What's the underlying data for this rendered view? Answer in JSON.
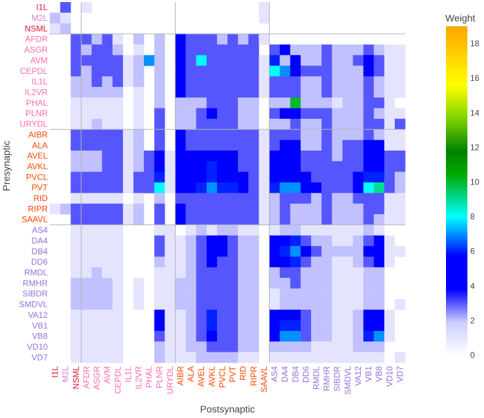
{
  "chart_data": {
    "type": "heatmap",
    "title": "",
    "xlabel": "Postsynaptic",
    "ylabel": "Presynaptic",
    "colorbar": {
      "title": "Weight",
      "range": [
        0,
        19
      ],
      "ticks": [
        0,
        2,
        4,
        6,
        8,
        10,
        12,
        14,
        16,
        18
      ],
      "colorscale": [
        [
          0,
          "#ffffff"
        ],
        [
          0.1,
          "#ccccff"
        ],
        [
          0.2,
          "#0000ff"
        ],
        [
          0.3,
          "#0000ff"
        ],
        [
          0.42,
          "#00ffff"
        ],
        [
          0.55,
          "#00aa00"
        ],
        [
          0.62,
          "#008000"
        ],
        [
          0.72,
          "#7fd400"
        ],
        [
          0.82,
          "#ffff00"
        ],
        [
          1.0,
          "#ffa500"
        ]
      ]
    },
    "y_labels": [
      {
        "text": "I1L",
        "color": "#dc143c"
      },
      {
        "text": "M2L",
        "color": "#d580d5"
      },
      {
        "text": "NSML",
        "color": "#dc143c"
      },
      {
        "text": "AFDR",
        "color": "#ff69b4"
      },
      {
        "text": "ASGR",
        "color": "#ff69b4"
      },
      {
        "text": "AVM",
        "color": "#ff69b4"
      },
      {
        "text": "CEPDL",
        "color": "#ff69b4"
      },
      {
        "text": "IL1L",
        "color": "#ff69b4"
      },
      {
        "text": "IL2VR",
        "color": "#ff69b4"
      },
      {
        "text": "PHAL",
        "color": "#ff69b4"
      },
      {
        "text": "PLNR",
        "color": "#ff69b4"
      },
      {
        "text": "URYDL",
        "color": "#ff69b4"
      },
      {
        "text": "AIBR",
        "color": "#ff4500"
      },
      {
        "text": "ALA",
        "color": "#ff4500"
      },
      {
        "text": "AVEL",
        "color": "#ff4500"
      },
      {
        "text": "AVKL",
        "color": "#ff4500"
      },
      {
        "text": "PVCL",
        "color": "#ff4500"
      },
      {
        "text": "PVT",
        "color": "#ff4500"
      },
      {
        "text": "RID",
        "color": "#ff4500"
      },
      {
        "text": "RIPR",
        "color": "#ff4500"
      },
      {
        "text": "SAAVL",
        "color": "#ff4500"
      },
      {
        "text": "AS4",
        "color": "#9370db"
      },
      {
        "text": "DA4",
        "color": "#9370db"
      },
      {
        "text": "DB4",
        "color": "#9370db"
      },
      {
        "text": "DD6",
        "color": "#9370db"
      },
      {
        "text": "RMDL",
        "color": "#9370db"
      },
      {
        "text": "RMHR",
        "color": "#9370db"
      },
      {
        "text": "SIBDR",
        "color": "#9370db"
      },
      {
        "text": "SMDVL",
        "color": "#9370db"
      },
      {
        "text": "VA12",
        "color": "#9370db"
      },
      {
        "text": "VB1",
        "color": "#9370db"
      },
      {
        "text": "VB8",
        "color": "#9370db"
      },
      {
        "text": "VD10",
        "color": "#9370db"
      },
      {
        "text": "VD7",
        "color": "#9370db"
      }
    ],
    "x_labels": [
      {
        "text": "I1L",
        "color": "#dc143c"
      },
      {
        "text": "M2L",
        "color": "#d580d5"
      },
      {
        "text": "NSML",
        "color": "#dc143c"
      },
      {
        "text": "AFDR",
        "color": "#ff69b4"
      },
      {
        "text": "ASGR",
        "color": "#ff69b4"
      },
      {
        "text": "AVM",
        "color": "#ff69b4"
      },
      {
        "text": "CEPDL",
        "color": "#ff69b4"
      },
      {
        "text": "IL1L",
        "color": "#ff69b4"
      },
      {
        "text": "IL2VR",
        "color": "#ff69b4"
      },
      {
        "text": "PHAL",
        "color": "#ff69b4"
      },
      {
        "text": "PLNR",
        "color": "#ff69b4"
      },
      {
        "text": "URYDL",
        "color": "#ff69b4"
      },
      {
        "text": "AIBR",
        "color": "#ff4500"
      },
      {
        "text": "ALA",
        "color": "#ff4500"
      },
      {
        "text": "AVEL",
        "color": "#ff4500"
      },
      {
        "text": "AVKL",
        "color": "#ff4500"
      },
      {
        "text": "PVCL",
        "color": "#ff4500"
      },
      {
        "text": "PVT",
        "color": "#ff4500"
      },
      {
        "text": "RID",
        "color": "#ff4500"
      },
      {
        "text": "RIPR",
        "color": "#ff4500"
      },
      {
        "text": "SAAVL",
        "color": "#ff4500"
      },
      {
        "text": "AS4",
        "color": "#9370db"
      },
      {
        "text": "DA4",
        "color": "#9370db"
      },
      {
        "text": "DB4",
        "color": "#9370db"
      },
      {
        "text": "DD6",
        "color": "#9370db"
      },
      {
        "text": "RMDL",
        "color": "#9370db"
      },
      {
        "text": "RMHR",
        "color": "#9370db"
      },
      {
        "text": "SIBDR",
        "color": "#9370db"
      },
      {
        "text": "SMDVL",
        "color": "#9370db"
      },
      {
        "text": "VA12",
        "color": "#9370db"
      },
      {
        "text": "VB1",
        "color": "#9370db"
      },
      {
        "text": "VB8",
        "color": "#9370db"
      },
      {
        "text": "VD10",
        "color": "#9370db"
      },
      {
        "text": "VD7",
        "color": "#9370db"
      }
    ],
    "group_boundaries_after": [
      "NSML",
      "URYDL",
      "SAAVL"
    ],
    "values": [
      [
        0,
        3,
        0,
        1,
        0,
        0,
        0,
        0,
        0,
        0,
        0,
        0,
        0,
        0,
        0,
        0,
        0,
        0,
        0,
        0,
        1,
        0,
        0,
        0,
        0,
        0,
        0,
        0,
        0,
        0,
        0,
        0,
        0,
        0
      ],
      [
        2,
        1,
        0,
        0,
        0,
        0,
        0,
        0,
        0,
        0,
        0,
        0,
        0,
        0,
        0,
        0,
        0,
        0,
        0,
        0,
        1,
        0,
        0,
        0,
        0,
        0,
        0,
        0,
        0,
        0,
        0,
        0,
        0,
        0
      ],
      [
        1,
        2,
        0,
        0,
        0,
        0,
        0,
        0,
        0,
        0,
        0,
        0,
        0,
        0,
        0,
        0,
        0,
        0,
        0,
        0,
        0,
        0,
        0,
        0,
        0,
        0,
        0,
        0,
        0,
        0,
        0,
        0,
        0,
        0
      ],
      [
        0,
        0,
        3,
        3,
        2,
        3,
        1,
        0,
        2,
        0,
        2,
        0,
        4,
        3,
        3,
        3,
        2,
        3,
        2,
        3,
        1,
        0,
        0,
        0,
        0,
        0,
        0,
        0,
        0,
        0,
        0,
        0,
        0,
        0
      ],
      [
        0,
        0,
        3,
        2,
        3,
        3,
        2,
        0,
        1,
        0,
        2,
        0,
        4,
        3,
        3,
        3,
        3,
        3,
        3,
        3,
        0,
        3,
        4,
        2,
        2,
        2,
        3,
        2,
        2,
        2,
        3,
        2,
        1,
        1
      ],
      [
        0,
        0,
        3,
        3,
        3,
        3,
        3,
        1,
        2,
        7,
        2,
        0,
        4,
        3,
        8,
        3,
        3,
        3,
        3,
        3,
        1,
        6,
        2,
        4,
        2,
        2,
        3,
        2,
        2,
        3,
        4,
        3,
        1,
        1
      ],
      [
        0,
        0,
        3,
        2,
        3,
        3,
        3,
        1,
        2,
        0,
        2,
        0,
        4,
        3,
        3,
        3,
        3,
        3,
        3,
        3,
        1,
        8,
        7,
        4,
        3,
        3,
        3,
        2,
        2,
        2,
        4,
        3,
        1,
        1
      ],
      [
        0,
        0,
        2,
        2,
        3,
        2,
        3,
        1,
        2,
        0,
        2,
        0,
        4,
        3,
        3,
        3,
        3,
        3,
        3,
        3,
        1,
        3,
        3,
        3,
        2,
        2,
        3,
        2,
        2,
        2,
        3,
        2,
        1,
        1
      ],
      [
        0,
        0,
        2,
        2,
        2,
        2,
        2,
        0,
        1,
        0,
        2,
        0,
        4,
        3,
        3,
        3,
        3,
        3,
        3,
        3,
        1,
        3,
        3,
        3,
        2,
        2,
        3,
        2,
        2,
        2,
        3,
        2,
        1,
        1
      ],
      [
        0,
        0,
        1,
        1,
        1,
        1,
        1,
        0,
        1,
        0,
        2,
        0,
        2,
        2,
        2,
        3,
        3,
        3,
        2,
        2,
        0,
        2,
        2,
        10,
        2,
        2,
        2,
        1,
        2,
        2,
        3,
        3,
        1,
        0
      ],
      [
        0,
        0,
        1,
        1,
        1,
        1,
        1,
        0,
        1,
        0,
        3,
        0,
        2,
        2,
        3,
        4,
        3,
        3,
        2,
        2,
        0,
        3,
        4,
        4,
        3,
        3,
        3,
        2,
        2,
        2,
        3,
        2,
        1,
        1
      ],
      [
        0,
        0,
        1,
        1,
        2,
        1,
        1,
        0,
        1,
        0,
        3,
        0,
        2,
        2,
        3,
        3,
        3,
        3,
        2,
        2,
        0,
        2,
        2,
        3,
        2,
        2,
        3,
        2,
        2,
        2,
        3,
        3,
        1,
        3
      ],
      [
        0,
        0,
        3,
        3,
        3,
        3,
        3,
        1,
        2,
        0,
        3,
        0,
        4,
        3,
        3,
        3,
        3,
        3,
        3,
        3,
        1,
        3,
        3,
        3,
        2,
        2,
        3,
        2,
        2,
        2,
        3,
        2,
        1,
        1
      ],
      [
        0,
        0,
        3,
        3,
        3,
        3,
        3,
        1,
        2,
        0,
        3,
        0,
        4,
        3,
        3,
        3,
        3,
        3,
        3,
        3,
        1,
        3,
        4,
        4,
        2,
        2,
        3,
        2,
        3,
        3,
        4,
        4,
        1,
        1
      ],
      [
        0,
        0,
        2,
        2,
        2,
        3,
        3,
        1,
        2,
        3,
        4,
        1,
        4,
        4,
        4,
        4,
        4,
        4,
        3,
        3,
        1,
        4,
        4,
        4,
        3,
        3,
        3,
        2,
        3,
        3,
        4,
        4,
        3,
        3
      ],
      [
        0,
        0,
        2,
        2,
        2,
        3,
        3,
        1,
        2,
        3,
        5,
        1,
        4,
        4,
        5,
        6,
        4,
        4,
        3,
        3,
        1,
        4,
        4,
        4,
        3,
        3,
        3,
        3,
        3,
        3,
        5,
        4,
        3,
        3
      ],
      [
        0,
        0,
        3,
        3,
        3,
        3,
        3,
        1,
        3,
        3,
        6,
        1,
        4,
        4,
        5,
        6,
        5,
        5,
        4,
        3,
        1,
        5,
        5,
        5,
        4,
        3,
        3,
        3,
        3,
        4,
        6,
        6,
        3,
        2
      ],
      [
        0,
        0,
        3,
        3,
        3,
        3,
        3,
        1,
        3,
        3,
        8,
        1,
        4,
        4,
        6,
        7,
        6,
        6,
        4,
        3,
        1,
        6,
        7,
        7,
        4,
        4,
        3,
        3,
        3,
        4,
        8,
        9,
        3,
        2
      ],
      [
        0,
        0,
        1,
        1,
        1,
        1,
        1,
        0,
        1,
        0,
        2,
        0,
        3,
        3,
        3,
        3,
        3,
        3,
        3,
        3,
        1,
        2,
        3,
        3,
        3,
        2,
        3,
        2,
        2,
        3,
        3,
        3,
        1,
        1
      ],
      [
        1,
        2,
        3,
        3,
        3,
        3,
        3,
        1,
        2,
        0,
        3,
        0,
        4,
        3,
        3,
        3,
        3,
        3,
        3,
        3,
        1,
        2,
        3,
        2,
        2,
        2,
        3,
        2,
        2,
        2,
        3,
        3,
        1,
        1
      ],
      [
        0,
        0,
        3,
        3,
        3,
        3,
        3,
        1,
        2,
        0,
        3,
        0,
        4,
        3,
        3,
        3,
        3,
        3,
        3,
        3,
        1,
        2,
        3,
        2,
        2,
        2,
        3,
        2,
        2,
        2,
        3,
        2,
        1,
        1
      ],
      [
        0,
        0,
        1,
        1,
        1,
        1,
        1,
        0,
        0,
        0,
        1,
        1,
        0,
        1,
        2,
        1,
        2,
        2,
        1,
        1,
        0,
        1,
        2,
        2,
        1,
        1,
        1,
        1,
        1,
        1,
        2,
        1,
        0,
        0
      ],
      [
        0,
        0,
        1,
        1,
        1,
        1,
        1,
        0,
        0,
        0,
        3,
        1,
        1,
        2,
        3,
        4,
        4,
        3,
        2,
        2,
        0,
        4,
        5,
        6,
        3,
        2,
        2,
        1,
        1,
        2,
        3,
        4,
        1,
        0
      ],
      [
        0,
        0,
        1,
        1,
        1,
        1,
        1,
        0,
        0,
        0,
        3,
        1,
        1,
        2,
        3,
        5,
        4,
        3,
        2,
        2,
        0,
        5,
        6,
        7,
        4,
        3,
        2,
        2,
        2,
        2,
        4,
        5,
        1,
        1
      ],
      [
        0,
        0,
        1,
        1,
        1,
        1,
        1,
        0,
        0,
        0,
        2,
        1,
        1,
        2,
        3,
        4,
        3,
        3,
        2,
        2,
        0,
        4,
        5,
        6,
        3,
        2,
        2,
        1,
        1,
        2,
        3,
        4,
        1,
        0
      ],
      [
        0,
        0,
        1,
        1,
        2,
        1,
        1,
        0,
        0,
        0,
        1,
        1,
        1,
        2,
        3,
        3,
        3,
        3,
        2,
        2,
        0,
        2,
        3,
        3,
        2,
        2,
        2,
        1,
        1,
        1,
        2,
        2,
        0,
        0
      ],
      [
        0,
        0,
        2,
        2,
        2,
        2,
        1,
        0,
        1,
        0,
        1,
        1,
        2,
        2,
        3,
        3,
        3,
        3,
        2,
        2,
        0,
        2,
        2,
        3,
        2,
        2,
        2,
        1,
        1,
        1,
        2,
        2,
        0,
        0
      ],
      [
        0,
        0,
        2,
        2,
        2,
        2,
        1,
        0,
        1,
        0,
        1,
        1,
        2,
        2,
        3,
        3,
        3,
        3,
        2,
        2,
        0,
        1,
        2,
        2,
        2,
        2,
        2,
        1,
        1,
        1,
        2,
        2,
        0,
        0
      ],
      [
        0,
        0,
        2,
        2,
        2,
        2,
        1,
        0,
        1,
        0,
        1,
        1,
        2,
        2,
        3,
        3,
        3,
        3,
        2,
        2,
        0,
        1,
        2,
        2,
        2,
        2,
        2,
        1,
        1,
        1,
        2,
        2,
        0,
        1
      ],
      [
        0,
        0,
        1,
        1,
        1,
        1,
        1,
        0,
        0,
        0,
        4,
        1,
        1,
        2,
        3,
        6,
        3,
        3,
        2,
        2,
        0,
        4,
        5,
        5,
        3,
        2,
        2,
        1,
        1,
        2,
        4,
        4,
        1,
        0
      ],
      [
        0,
        0,
        1,
        1,
        1,
        1,
        1,
        0,
        0,
        0,
        4,
        1,
        1,
        2,
        3,
        6,
        3,
        3,
        2,
        2,
        0,
        5,
        6,
        6,
        3,
        2,
        2,
        1,
        1,
        2,
        5,
        5,
        1,
        0
      ],
      [
        0,
        0,
        1,
        1,
        1,
        1,
        1,
        0,
        0,
        0,
        3,
        1,
        1,
        2,
        3,
        5,
        3,
        3,
        2,
        2,
        0,
        5,
        7,
        7,
        3,
        2,
        2,
        1,
        1,
        2,
        6,
        7,
        1,
        0
      ],
      [
        0,
        0,
        1,
        1,
        1,
        1,
        1,
        0,
        0,
        0,
        2,
        1,
        1,
        2,
        2,
        3,
        3,
        3,
        2,
        2,
        0,
        2,
        2,
        2,
        2,
        1,
        1,
        1,
        1,
        2,
        2,
        2,
        0,
        0
      ],
      [
        0,
        0,
        1,
        1,
        1,
        1,
        1,
        0,
        0,
        0,
        2,
        1,
        1,
        1,
        2,
        2,
        2,
        2,
        1,
        1,
        0,
        1,
        1,
        1,
        1,
        1,
        1,
        1,
        1,
        1,
        1,
        1,
        0,
        1
      ]
    ]
  }
}
